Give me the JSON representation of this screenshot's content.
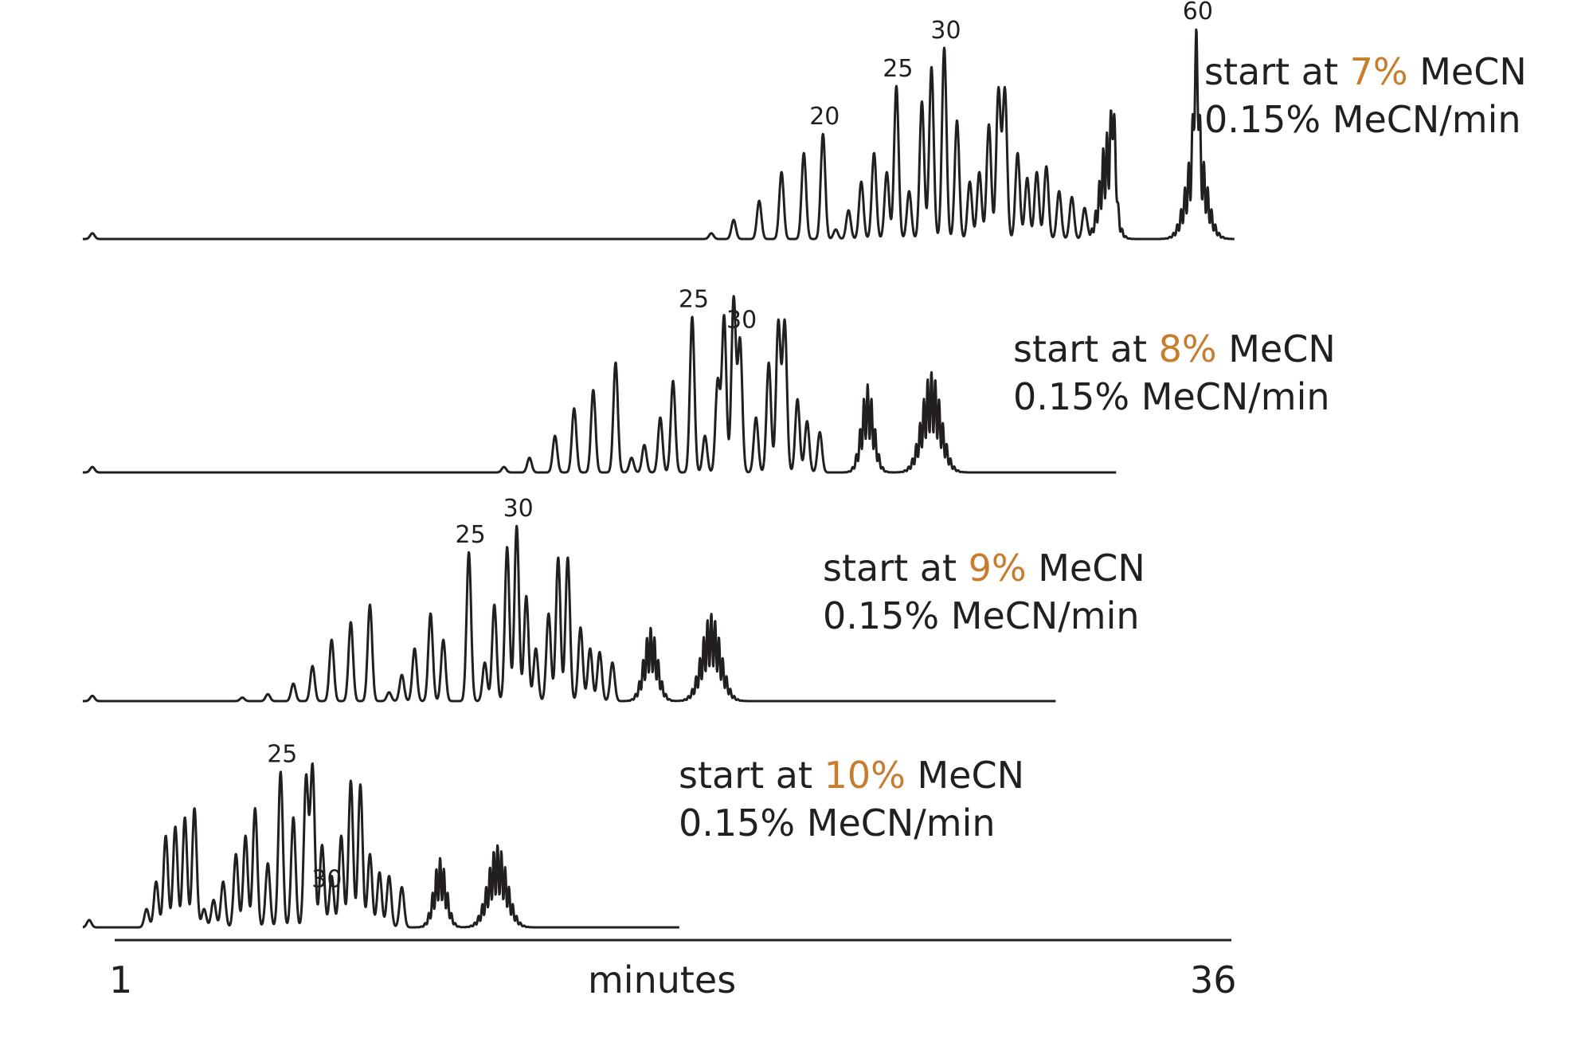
{
  "chart_data": {
    "type": "line",
    "xlabel": "minutes",
    "x_tick_labels": [
      "1",
      "36"
    ],
    "xlim": [
      1,
      36
    ],
    "accent_color": "#c87d2e",
    "line_color": "#231f20",
    "series": [
      {
        "line1_prefix": "start at ",
        "start_pct": "7%",
        "line1_suffix": " MeCN",
        "rate": "0.15% MeCN/min",
        "x_end": 36.1,
        "peak_labels": [
          {
            "text": "20",
            "x": 23.2
          },
          {
            "text": "25",
            "x": 25.5
          },
          {
            "text": "30",
            "x": 27.0
          },
          {
            "text": "60",
            "x": 34.9
          }
        ],
        "peaks": [
          [
            0.3,
            0.03
          ],
          [
            19.7,
            0.03
          ],
          [
            20.4,
            0.1
          ],
          [
            21.2,
            0.2
          ],
          [
            21.9,
            0.35
          ],
          [
            22.6,
            0.45
          ],
          [
            23.2,
            0.55
          ],
          [
            23.6,
            0.05
          ],
          [
            24.0,
            0.15
          ],
          [
            24.4,
            0.3
          ],
          [
            24.8,
            0.45
          ],
          [
            25.2,
            0.35
          ],
          [
            25.5,
            0.8
          ],
          [
            25.9,
            0.25
          ],
          [
            26.3,
            0.72
          ],
          [
            26.6,
            0.9
          ],
          [
            27.0,
            1.0
          ],
          [
            27.4,
            0.62
          ],
          [
            27.8,
            0.3
          ],
          [
            28.1,
            0.35
          ],
          [
            28.4,
            0.6
          ],
          [
            28.7,
            0.78
          ],
          [
            28.9,
            0.78
          ],
          [
            29.3,
            0.45
          ],
          [
            29.6,
            0.32
          ],
          [
            29.9,
            0.35
          ],
          [
            30.2,
            0.38
          ],
          [
            30.6,
            0.25
          ],
          [
            31.0,
            0.22
          ],
          [
            31.4,
            0.16
          ],
          [
            32.3,
            0.38
          ],
          [
            34.9,
            0.55
          ]
        ],
        "humps": [
          [
            32.1,
            0.55,
            0.22
          ],
          [
            34.9,
            0.55,
            0.3
          ]
        ]
      },
      {
        "line1_prefix": "start at ",
        "start_pct": "8%",
        "line1_suffix": " MeCN",
        "rate": "0.15% MeCN/min",
        "x_end": 32.4,
        "peak_labels": [
          {
            "text": "25",
            "x": 19.1
          },
          {
            "text": "30",
            "x": 20.6
          }
        ],
        "peaks": [
          [
            0.3,
            0.03
          ],
          [
            13.2,
            0.03
          ],
          [
            14.0,
            0.08
          ],
          [
            14.8,
            0.2
          ],
          [
            15.4,
            0.35
          ],
          [
            16.0,
            0.45
          ],
          [
            16.7,
            0.6
          ],
          [
            17.2,
            0.08
          ],
          [
            17.6,
            0.15
          ],
          [
            18.1,
            0.3
          ],
          [
            18.5,
            0.5
          ],
          [
            19.1,
            0.85
          ],
          [
            19.5,
            0.2
          ],
          [
            19.9,
            0.5
          ],
          [
            20.1,
            0.85
          ],
          [
            20.4,
            0.95
          ],
          [
            20.6,
            0.72
          ],
          [
            21.1,
            0.3
          ],
          [
            21.5,
            0.6
          ],
          [
            21.8,
            0.82
          ],
          [
            22.0,
            0.82
          ],
          [
            22.4,
            0.4
          ],
          [
            22.7,
            0.28
          ],
          [
            23.1,
            0.22
          ]
        ],
        "humps": [
          [
            24.6,
            0.48,
            0.2
          ],
          [
            26.6,
            0.55,
            0.3
          ]
        ]
      },
      {
        "line1_prefix": "start at ",
        "start_pct": "9%",
        "line1_suffix": " MeCN",
        "rate": "0.15% MeCN/min",
        "x_end": 30.5,
        "peak_labels": [
          {
            "text": "25",
            "x": 12.1
          },
          {
            "text": "30",
            "x": 13.6
          }
        ],
        "peaks": [
          [
            0.3,
            0.03
          ],
          [
            5.0,
            0.02
          ],
          [
            5.8,
            0.04
          ],
          [
            6.6,
            0.1
          ],
          [
            7.2,
            0.2
          ],
          [
            7.8,
            0.35
          ],
          [
            8.4,
            0.45
          ],
          [
            9.0,
            0.55
          ],
          [
            9.6,
            0.05
          ],
          [
            10.0,
            0.15
          ],
          [
            10.4,
            0.3
          ],
          [
            10.9,
            0.5
          ],
          [
            11.3,
            0.35
          ],
          [
            12.1,
            0.85
          ],
          [
            12.6,
            0.22
          ],
          [
            12.9,
            0.55
          ],
          [
            13.3,
            0.88
          ],
          [
            13.6,
            1.0
          ],
          [
            13.9,
            0.6
          ],
          [
            14.2,
            0.3
          ],
          [
            14.6,
            0.5
          ],
          [
            14.9,
            0.82
          ],
          [
            15.2,
            0.82
          ],
          [
            15.6,
            0.42
          ],
          [
            15.9,
            0.3
          ],
          [
            16.2,
            0.28
          ],
          [
            16.6,
            0.22
          ]
        ],
        "humps": [
          [
            17.8,
            0.42,
            0.22
          ],
          [
            19.7,
            0.5,
            0.3
          ]
        ]
      },
      {
        "line1_prefix": "start at ",
        "start_pct": "10%",
        "line1_suffix": " MeCN",
        "rate": "0.15% MeCN/min",
        "x_end": 18.7,
        "peak_labels": [
          {
            "text": "25",
            "x": 6.2
          },
          {
            "text": "30",
            "x": 7.6
          }
        ],
        "peaks": [
          [
            0.2,
            0.04
          ],
          [
            2.0,
            0.1
          ],
          [
            2.3,
            0.25
          ],
          [
            2.6,
            0.5
          ],
          [
            2.9,
            0.55
          ],
          [
            3.2,
            0.6
          ],
          [
            3.5,
            0.65
          ],
          [
            3.8,
            0.1
          ],
          [
            4.1,
            0.15
          ],
          [
            4.4,
            0.25
          ],
          [
            4.8,
            0.4
          ],
          [
            5.1,
            0.5
          ],
          [
            5.4,
            0.65
          ],
          [
            5.8,
            0.35
          ],
          [
            6.2,
            0.85
          ],
          [
            6.6,
            0.6
          ],
          [
            7.0,
            0.82
          ],
          [
            7.2,
            0.88
          ],
          [
            7.5,
            0.45
          ],
          [
            7.8,
            0.28
          ],
          [
            8.1,
            0.5
          ],
          [
            8.4,
            0.8
          ],
          [
            8.7,
            0.78
          ],
          [
            9.0,
            0.4
          ],
          [
            9.3,
            0.3
          ],
          [
            9.6,
            0.28
          ],
          [
            10.0,
            0.22
          ]
        ],
        "humps": [
          [
            11.2,
            0.38,
            0.2
          ],
          [
            13.0,
            0.45,
            0.3
          ]
        ]
      }
    ]
  }
}
